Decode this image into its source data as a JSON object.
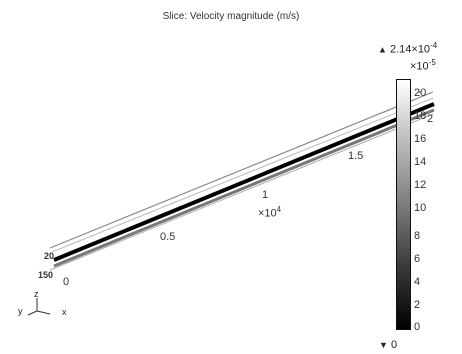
{
  "plot": {
    "title": "Slice: Velocity magnitude (m/s)"
  },
  "colorbar": {
    "max_label": "2.14×10",
    "max_exp": "-4",
    "scale_label": "×10",
    "scale_exp": "-5",
    "min_label": "0",
    "ticks": [
      "20",
      "18",
      "16",
      "14",
      "12",
      "10",
      "8",
      "6",
      "4",
      "2",
      "0"
    ],
    "gradient": [
      "#ffffff",
      "#c8c8c8",
      "#8a8a8a",
      "#3a3a3a",
      "#000000"
    ]
  },
  "axis": {
    "tick_0": "0",
    "tick_05": "0.5",
    "tick_1": "1",
    "tick_15": "1.5",
    "tick_2": "2",
    "multiplier": "×10",
    "multiplier_exp": "4",
    "left_ticks_top": "20",
    "left_ticks_bottom": "150",
    "right_tick_a": "2",
    "right_tick_b": "-"
  },
  "triad": {
    "x": "x",
    "y": "y",
    "z": "z"
  },
  "colors": {
    "channel_core": "#000000",
    "channel_wall": "#555555",
    "channel_outline": "#999999"
  }
}
